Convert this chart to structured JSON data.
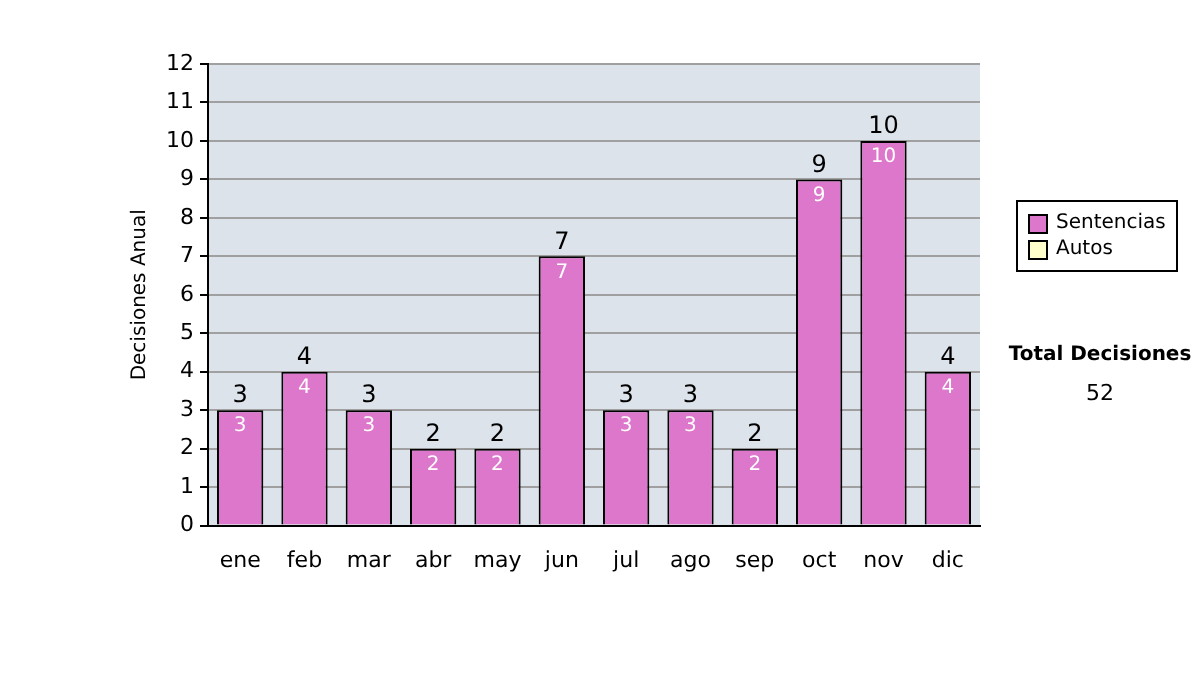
{
  "chart_data": {
    "type": "bar",
    "ylabel": "Decisiones Anual",
    "categories": [
      "ene",
      "feb",
      "mar",
      "abr",
      "may",
      "jun",
      "jul",
      "ago",
      "sep",
      "oct",
      "nov",
      "dic"
    ],
    "series": [
      {
        "name": "Sentencias",
        "color": "#dd77cc",
        "values": [
          3,
          4,
          3,
          2,
          2,
          7,
          3,
          3,
          2,
          9,
          10,
          4
        ],
        "value_labels": [
          "3",
          "4",
          "3",
          "2",
          "2",
          "7",
          "3",
          "3",
          "2",
          "9",
          "10",
          "4"
        ]
      },
      {
        "name": "Autos",
        "color": "#ffffcc",
        "values": [
          0,
          0,
          0,
          0,
          0,
          0,
          0,
          0,
          0,
          0,
          0,
          0
        ]
      }
    ],
    "stacked": true,
    "totals": [
      "3",
      "4",
      "3",
      "2",
      "2",
      "7",
      "3",
      "3",
      "2",
      "9",
      "10",
      "4"
    ],
    "ylim": [
      0,
      12
    ],
    "yticks": [
      0,
      1,
      2,
      3,
      4,
      5,
      6,
      7,
      8,
      9,
      10,
      11,
      12
    ],
    "grid": "y",
    "legend": "right",
    "annotations": [
      "Total Decisiones",
      "52"
    ]
  }
}
